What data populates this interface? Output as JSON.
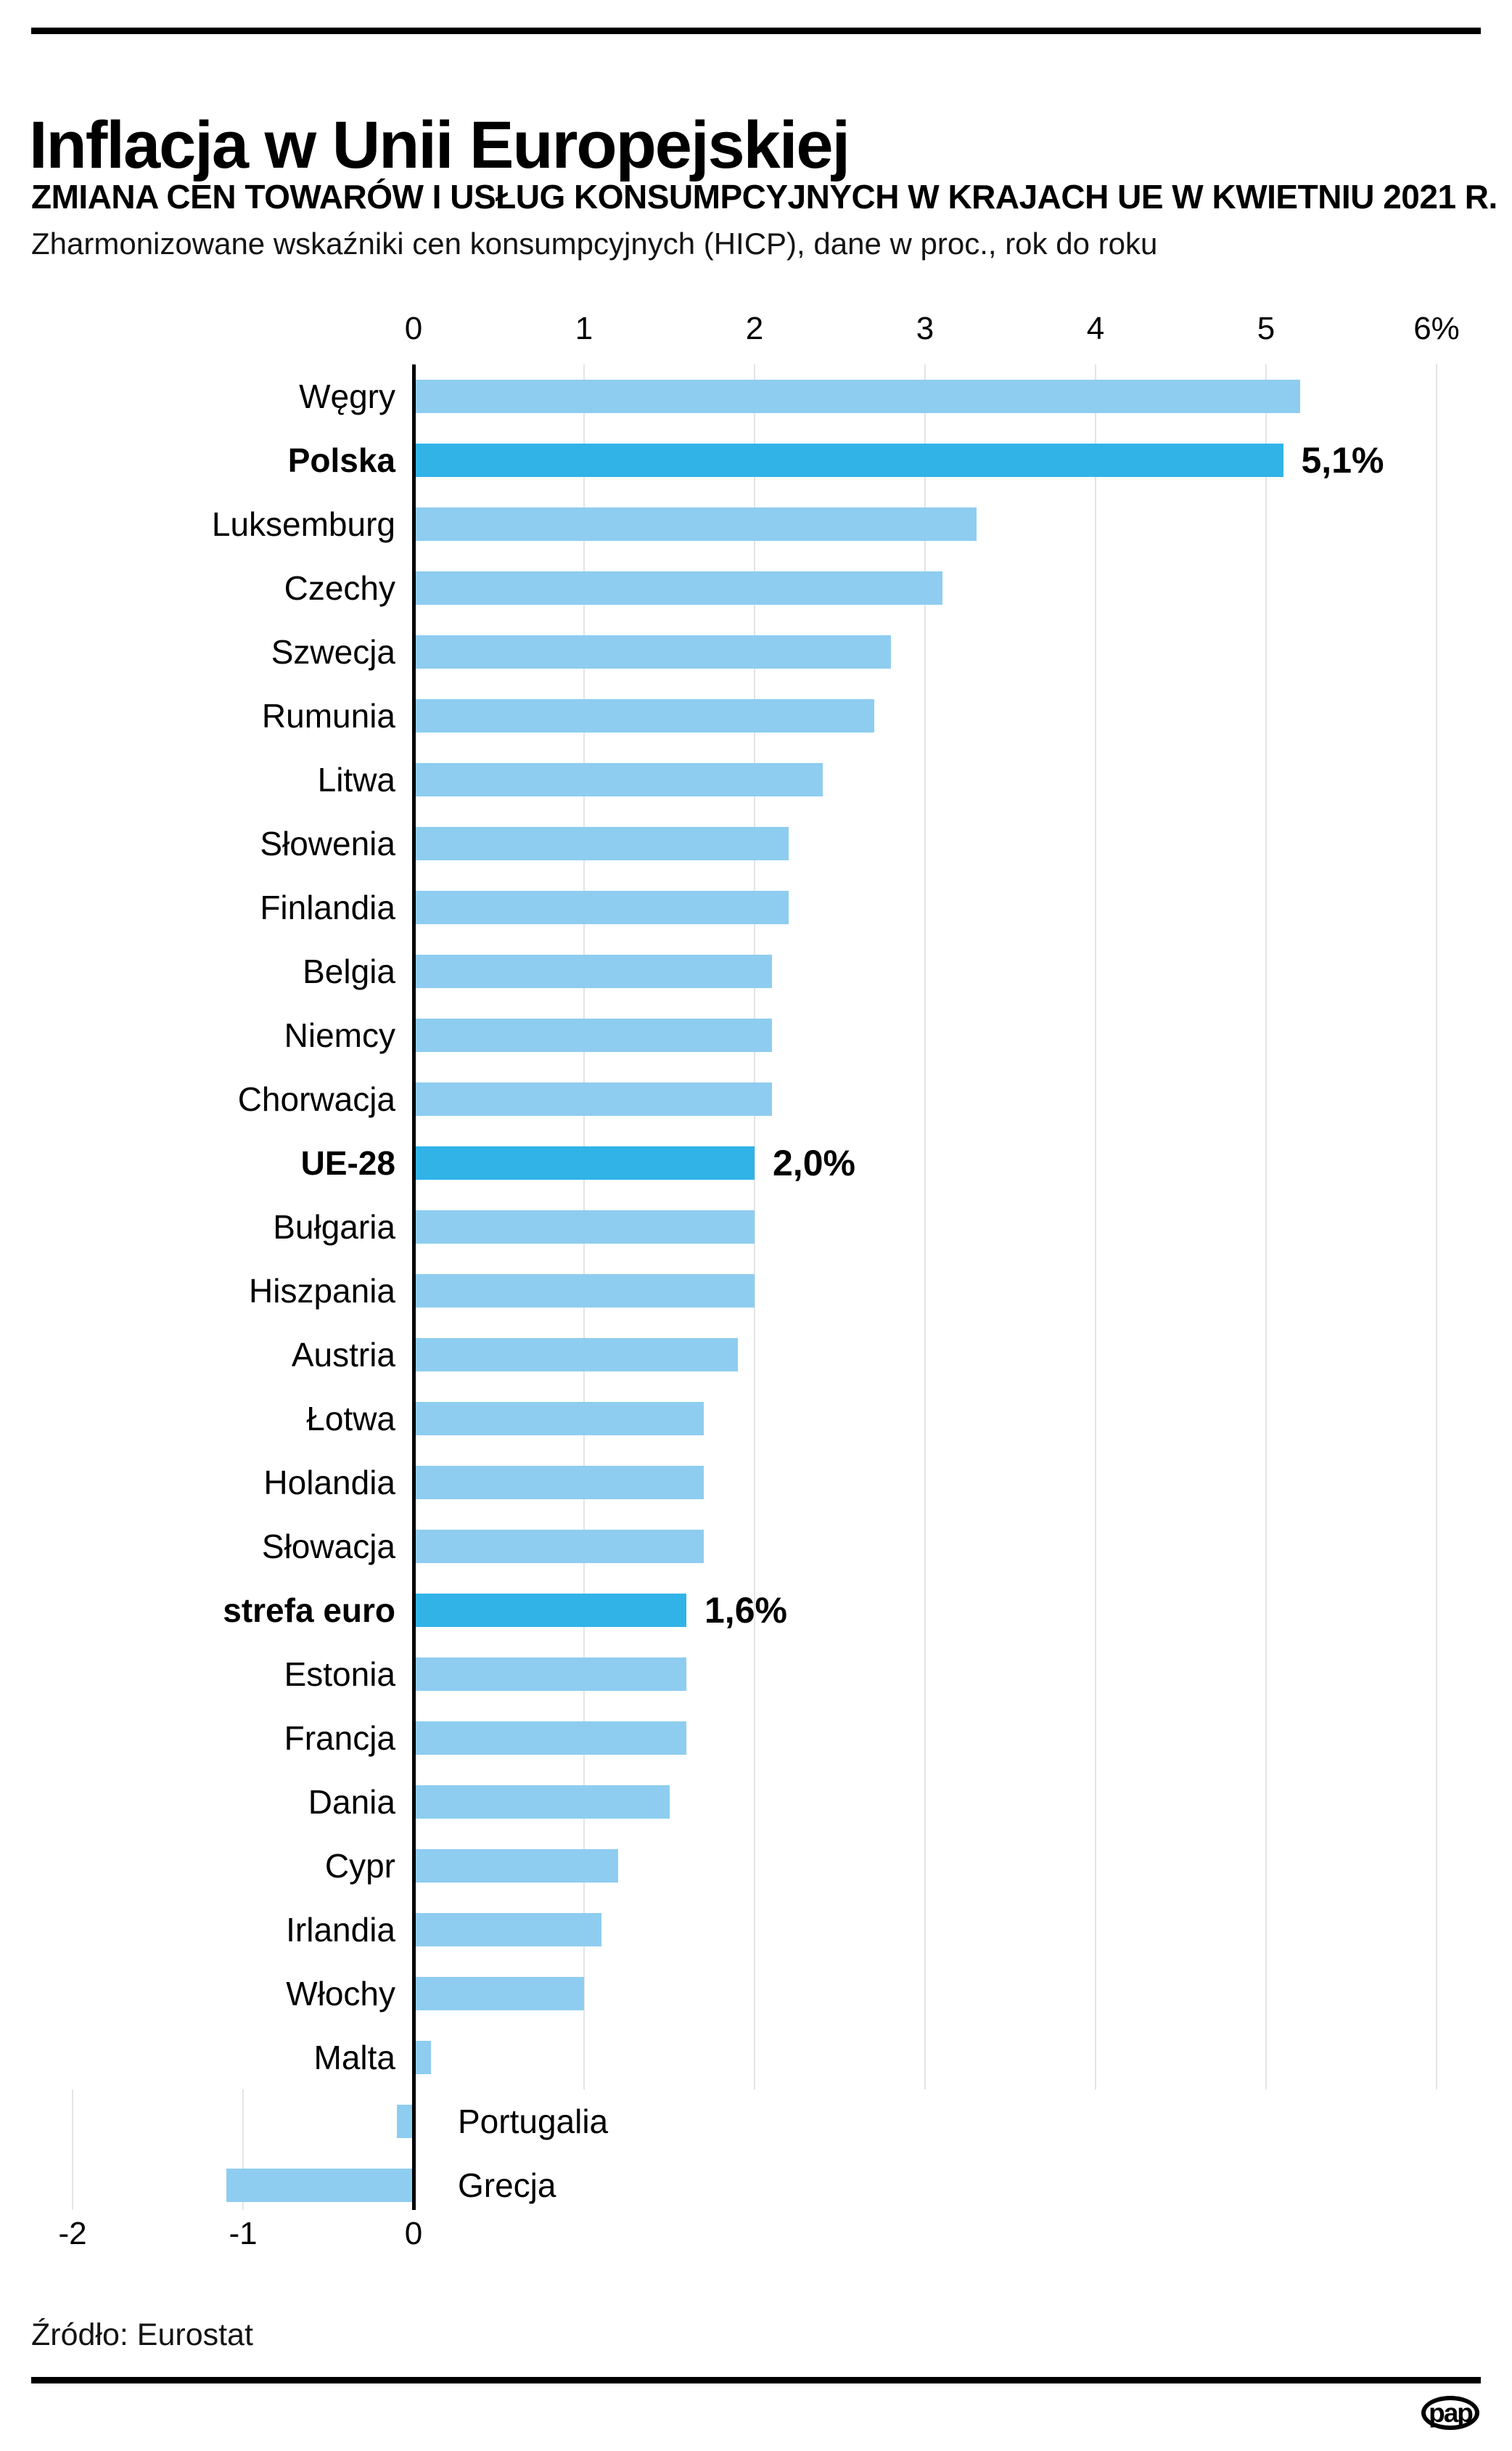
{
  "header": {
    "title": "Inflacja w Unii Europejskiej",
    "subtitle_caps": "ZMIANA CEN TOWARÓW I USŁUG KONSUMPCYJNYCH W KRAJACH UE W KWIETNIU 2021 R.",
    "subtitle": "Zharmonizowane wskaźniki cen konsumpcyjnych (HICP), dane w proc., rok do roku"
  },
  "chart_data": {
    "type": "bar",
    "orientation": "horizontal",
    "unit": "%",
    "title": "Zmiana cen towarów i usług konsumpcyjnych w krajach UE w kwietniu 2021 r. (HICP, proc., rok do roku)",
    "categories": [
      "Węgry",
      "Polska",
      "Luksemburg",
      "Czechy",
      "Szwecja",
      "Rumunia",
      "Litwa",
      "Słowenia",
      "Finlandia",
      "Belgia",
      "Niemcy",
      "Chorwacja",
      "UE-28",
      "Bułgaria",
      "Hiszpania",
      "Austria",
      "Łotwa",
      "Holandia",
      "Słowacja",
      "strefa euro",
      "Estonia",
      "Francja",
      "Dania",
      "Cypr",
      "Irlandia",
      "Włochy",
      "Malta",
      "Portugalia",
      "Grecja"
    ],
    "values": [
      5.2,
      5.1,
      3.3,
      3.1,
      2.8,
      2.7,
      2.4,
      2.2,
      2.2,
      2.1,
      2.1,
      2.1,
      2.0,
      2.0,
      2.0,
      1.9,
      1.7,
      1.7,
      1.7,
      1.6,
      1.6,
      1.6,
      1.5,
      1.2,
      1.1,
      1.0,
      0.1,
      -0.1,
      -1.1
    ],
    "highlight_indices": [
      1,
      12,
      19
    ],
    "value_labels": {
      "1": "5,1%",
      "12": "2,0%",
      "19": "1,6%"
    },
    "x_axis": {
      "range": [
        -2,
        6
      ],
      "top_ticks": [
        "0",
        "1",
        "2",
        "3",
        "4",
        "5",
        "6%"
      ],
      "top_tick_values": [
        0,
        1,
        2,
        3,
        4,
        5,
        6
      ],
      "bottom_ticks": [
        "-2",
        "-1",
        "0"
      ],
      "bottom_tick_values": [
        -2,
        -1,
        0
      ],
      "gridlines": true
    },
    "legend": "none",
    "colors": {
      "bar": "#8ECDF0",
      "bar_highlight": "#31B3E8",
      "gridline": "#e2e4e7",
      "axis": "#000000"
    }
  },
  "footer": {
    "source": "Źródło: Eurostat",
    "logo_text": "pap"
  }
}
